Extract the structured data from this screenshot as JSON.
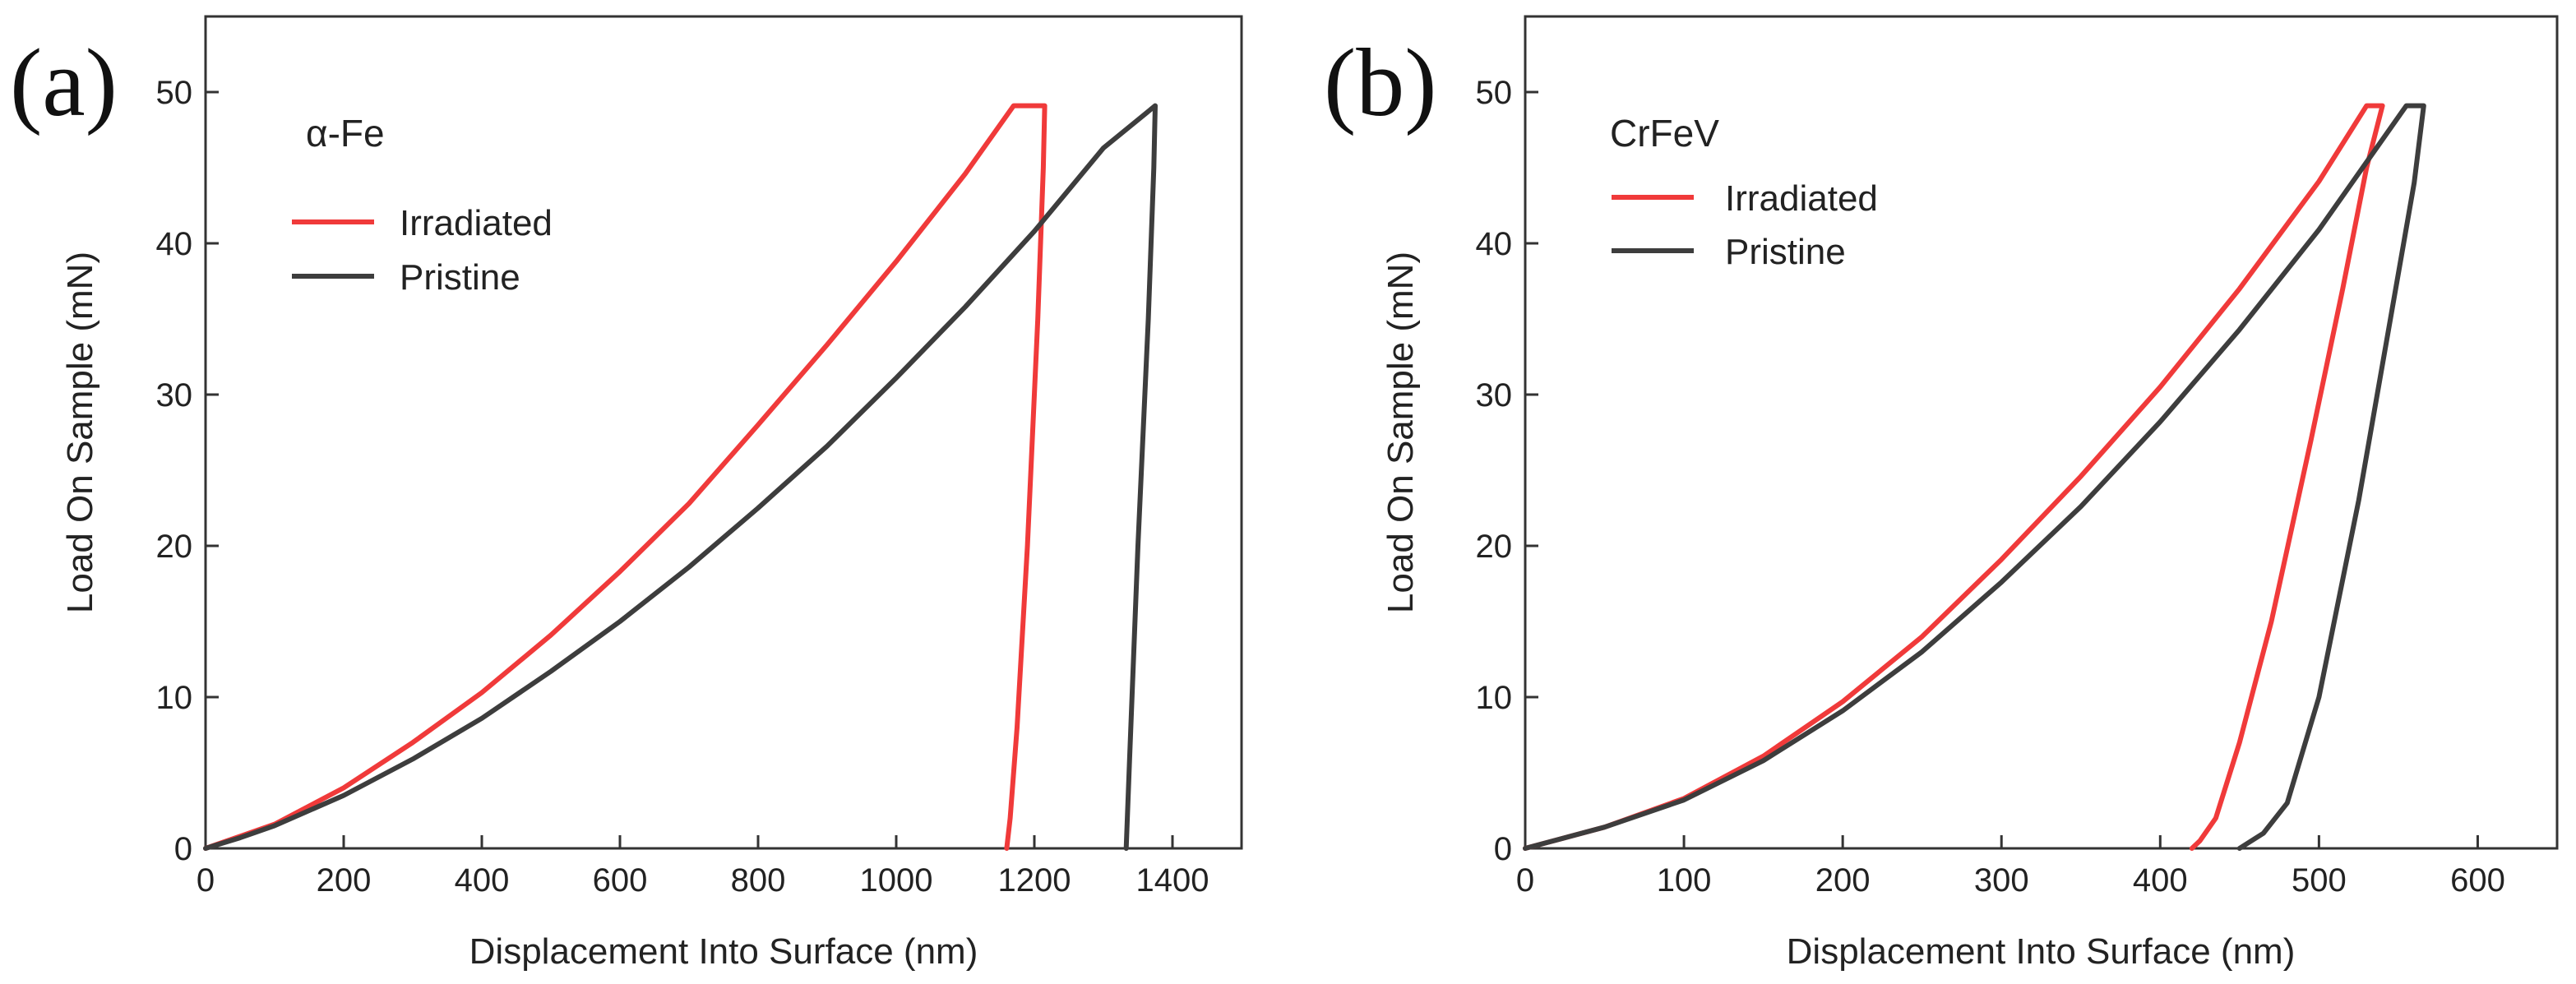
{
  "chart_data": [
    {
      "type": "line",
      "panel_label": "(a)",
      "title": "α-Fe",
      "xlabel": "Displacement Into Surface (nm)",
      "ylabel": "Load On Sample (mN)",
      "xlim": [
        0,
        1500
      ],
      "ylim": [
        0,
        55
      ],
      "xticks": [
        0,
        200,
        400,
        600,
        800,
        1000,
        1200,
        1400
      ],
      "yticks": [
        0,
        10,
        20,
        30,
        40,
        50
      ],
      "grid": false,
      "legend_position": "top-left",
      "series": [
        {
          "name": "Irradiated",
          "color": "#f03a3a",
          "x": [
            0,
            50,
            100,
            200,
            300,
            400,
            500,
            600,
            700,
            800,
            900,
            1000,
            1100,
            1170,
            1215,
            1213,
            1205,
            1190,
            1175,
            1165,
            1160
          ],
          "y": [
            0,
            0.8,
            1.6,
            4,
            7,
            10.3,
            14.1,
            18.3,
            22.8,
            28,
            33.3,
            38.8,
            44.6,
            49.1,
            49.1,
            45,
            35,
            20,
            8,
            2,
            0
          ]
        },
        {
          "name": "Pristine",
          "color": "#3d3d3d",
          "x": [
            0,
            50,
            100,
            200,
            300,
            400,
            500,
            600,
            700,
            800,
            900,
            1000,
            1100,
            1200,
            1300,
            1375,
            1373,
            1365,
            1350,
            1338,
            1333
          ],
          "y": [
            0,
            0.7,
            1.5,
            3.5,
            5.9,
            8.6,
            11.7,
            15,
            18.6,
            22.5,
            26.6,
            31.1,
            35.8,
            40.8,
            46.3,
            49.1,
            45,
            35,
            20,
            6,
            0
          ]
        }
      ]
    },
    {
      "type": "line",
      "panel_label": "(b)",
      "title": "CrFeV",
      "xlabel": "Displacement Into Surface (nm)",
      "ylabel": "Load On Sample (mN)",
      "xlim": [
        0,
        650
      ],
      "ylim": [
        0,
        55
      ],
      "xticks": [
        0,
        100,
        200,
        300,
        400,
        500,
        600
      ],
      "yticks": [
        0,
        10,
        20,
        30,
        40,
        50
      ],
      "grid": false,
      "legend_position": "top-left",
      "series": [
        {
          "name": "Irradiated",
          "color": "#f03a3a",
          "x": [
            0,
            50,
            100,
            150,
            200,
            250,
            300,
            350,
            400,
            450,
            500,
            530,
            540,
            530,
            515,
            495,
            470,
            450,
            435,
            425,
            420
          ],
          "y": [
            0,
            1.4,
            3.3,
            6.1,
            9.7,
            14,
            19.1,
            24.6,
            30.5,
            37,
            44.1,
            49.1,
            49.1,
            45,
            37,
            27,
            15,
            7,
            2,
            0.5,
            0
          ]
        },
        {
          "name": "Pristine",
          "color": "#3d3d3d",
          "x": [
            0,
            50,
            100,
            150,
            200,
            250,
            300,
            350,
            400,
            450,
            500,
            555,
            566,
            560,
            545,
            525,
            500,
            480,
            465,
            450
          ],
          "y": [
            0,
            1.4,
            3.2,
            5.8,
            9.1,
            13,
            17.6,
            22.6,
            28.2,
            34.3,
            40.9,
            49.1,
            49.1,
            44,
            35,
            23,
            10,
            3,
            1,
            0
          ]
        }
      ]
    }
  ]
}
